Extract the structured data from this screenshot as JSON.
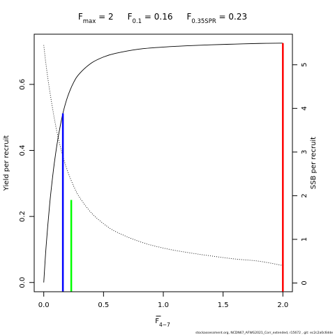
{
  "chart_data": {
    "type": "line",
    "title_parts": [
      {
        "base": "F",
        "sub": "max",
        "rest": " = 2"
      },
      {
        "base": "F",
        "sub": "0.1",
        "rest": " = 0.16"
      },
      {
        "base": "F",
        "sub": "0.35SPR",
        "rest": " = 0.23"
      }
    ],
    "xlabel": {
      "base": "F",
      "sub": "4−7",
      "overline": true
    },
    "ylabel": "Yield per recruit",
    "y2label": "SSB per recruit",
    "xlim": [
      -0.08,
      2.08
    ],
    "ylim": [
      -0.028,
      0.752
    ],
    "y2lim": [
      -0.2,
      5.7
    ],
    "xticks": [
      0,
      0.5,
      1,
      1.5,
      2
    ],
    "xtick_labels": [
      "0.0",
      "0.5",
      "1.0",
      "1.5",
      "2.0"
    ],
    "yticks": [
      0,
      0.2,
      0.4,
      0.6
    ],
    "ytick_labels": [
      "0.0",
      "0.2",
      "0.4",
      "0.6"
    ],
    "y2ticks": [
      0,
      1,
      2,
      3,
      4,
      5
    ],
    "y2tick_labels": [
      "0",
      "1",
      "2",
      "3",
      "4",
      "5"
    ],
    "series": [
      {
        "style": "solid",
        "axis": "left",
        "color": "#000000",
        "x": [
          0,
          0.02,
          0.05,
          0.08,
          0.1,
          0.125,
          0.16,
          0.2,
          0.25,
          0.3,
          0.4,
          0.5,
          0.6,
          0.8,
          1.0,
          1.2,
          1.4,
          1.6,
          1.8,
          2.0
        ],
        "y": [
          0,
          0.111,
          0.239,
          0.338,
          0.392,
          0.449,
          0.512,
          0.563,
          0.606,
          0.633,
          0.665,
          0.683,
          0.694,
          0.707,
          0.713,
          0.717,
          0.72,
          0.722,
          0.724,
          0.725
        ]
      },
      {
        "style": "dotted",
        "axis": "right",
        "color": "#000000",
        "x": [
          0,
          0.02,
          0.05,
          0.1,
          0.15,
          0.2,
          0.25,
          0.3,
          0.4,
          0.5,
          0.6,
          0.8,
          1.0,
          1.2,
          1.4,
          1.6,
          1.8,
          2.0
        ],
        "y": [
          5.45,
          4.98,
          4.4,
          3.6,
          3.0,
          2.56,
          2.22,
          1.96,
          1.6,
          1.36,
          1.18,
          0.95,
          0.8,
          0.7,
          0.62,
          0.55,
          0.5,
          0.4
        ]
      }
    ],
    "reference_lines": [
      {
        "name": "Fmax",
        "x": 2,
        "y": 0.725,
        "color": "#ff0000"
      },
      {
        "name": "F0.1",
        "x": 0.16,
        "y": 0.512,
        "color": "#0000ff"
      },
      {
        "name": "F0.35SPR",
        "x": 0.23,
        "y": 0.25,
        "color": "#00ff00"
      }
    ],
    "grid": false
  },
  "footer": "stockassessment.org,  NCDN67_AFWG2021_Corr_extended,  r15672 ,  git:  ec2c2a0c6dde"
}
